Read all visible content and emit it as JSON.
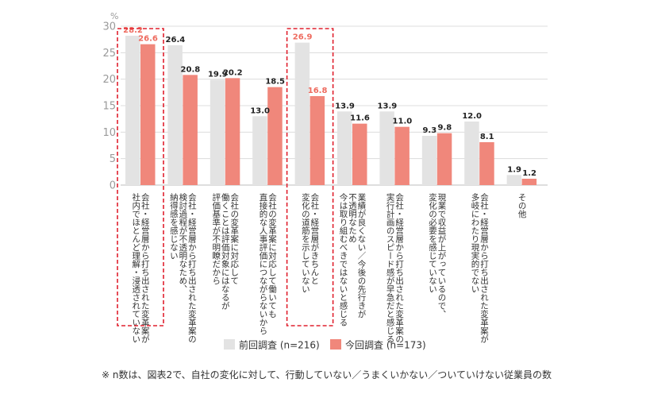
{
  "chart_data": {
    "type": "bar",
    "y_unit_label": "%",
    "ylim": [
      0,
      30
    ],
    "yticks": [
      0,
      5,
      10,
      15,
      20,
      25,
      30
    ],
    "grid": true,
    "legend_position": "bottom-center",
    "categories": [
      [
        "会社・経営層から打ち出された変革案が",
        "社内でほとんど理解・浸透されていない"
      ],
      [
        "会社・経営層から打ち出された変革案の",
        "検討過程が不透明なため、",
        "納得感を感じない"
      ],
      [
        "会社の変革案に対応して",
        "働くことは評価対象にはなるが",
        "評価基準が不明瞭だから"
      ],
      [
        "会社の変革案に対応して働いても",
        "直接的な人事評価につながらないから"
      ],
      [
        "会社・経営層がきちんと",
        "変化の道筋を示していない"
      ],
      [
        "業績が良くない／今後の先行きが",
        "不透明なため",
        "今は取り組むべきではないと感じる"
      ],
      [
        "会社・経営層から打ち出された変革案の",
        "実行計画のスピード感が早急だと感じる"
      ],
      [
        "現業で収益が上がっているので、",
        "変化の必要を感じていない"
      ],
      [
        "会社・経営層から打ち出された変革案が",
        "多岐にわたり現実的でない"
      ],
      [
        "その他"
      ]
    ],
    "series": [
      {
        "name": "前回調査 (n=216)",
        "color": "#e3e3e3",
        "label_color": "#222222",
        "values": [
          28.2,
          26.4,
          19.9,
          13.0,
          26.9,
          13.9,
          13.9,
          9.3,
          12.0,
          1.9
        ],
        "labels": [
          "28.2",
          "26.4",
          "19.9",
          "13.0",
          "26.9",
          "13.9",
          "13.9",
          "9.3",
          "12.0",
          "1.9"
        ]
      },
      {
        "name": "今回調査 (n=173)",
        "color": "#f0877b",
        "label_color": "#222222",
        "values": [
          26.6,
          20.8,
          20.2,
          18.5,
          16.8,
          11.6,
          11.0,
          9.8,
          8.1,
          1.2
        ],
        "labels": [
          "26.6",
          "20.8",
          "20.2",
          "18.5",
          "16.8",
          "11.6",
          "11.0",
          "9.8",
          "8.1",
          "1.2"
        ]
      }
    ],
    "highlighted_categories": [
      0,
      4
    ],
    "highlight_color": "#e0202e",
    "highlight_label_color": "#ee6a5e"
  },
  "footnote": "※ n数は、図表2で、自社の変化に対して、行動していない／うまくいかない／ついていけない従業員の数"
}
